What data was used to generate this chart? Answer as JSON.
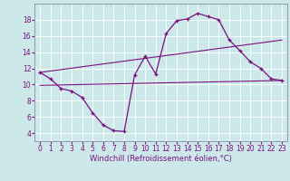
{
  "xlabel": "Windchill (Refroidissement éolien,°C)",
  "xlim": [
    -0.5,
    23.5
  ],
  "ylim": [
    3,
    20
  ],
  "xticks": [
    0,
    1,
    2,
    3,
    4,
    5,
    6,
    7,
    8,
    9,
    10,
    11,
    12,
    13,
    14,
    15,
    16,
    17,
    18,
    19,
    20,
    21,
    22,
    23
  ],
  "yticks": [
    4,
    6,
    8,
    10,
    12,
    14,
    16,
    18
  ],
  "background_color": "#cce8e8",
  "line_color": "#7a1080",
  "line1_x": [
    0,
    1,
    2,
    3,
    4,
    5,
    6,
    7,
    8,
    9,
    10,
    11,
    12,
    13,
    14,
    15,
    16,
    17,
    18,
    19,
    20,
    21,
    22,
    23
  ],
  "line1_y": [
    11.5,
    10.7,
    9.5,
    9.2,
    8.4,
    6.5,
    5.0,
    4.3,
    4.2,
    11.2,
    13.5,
    11.3,
    16.3,
    17.9,
    18.1,
    18.8,
    18.4,
    18.0,
    15.5,
    14.2,
    12.8,
    12.0,
    10.7,
    10.5
  ],
  "line2_x": [
    0,
    23
  ],
  "line2_y": [
    9.9,
    10.5
  ],
  "line3_x": [
    0,
    23
  ],
  "line3_y": [
    11.5,
    15.5
  ],
  "xlabel_fontsize": 6.0,
  "tick_fontsize": 5.5
}
